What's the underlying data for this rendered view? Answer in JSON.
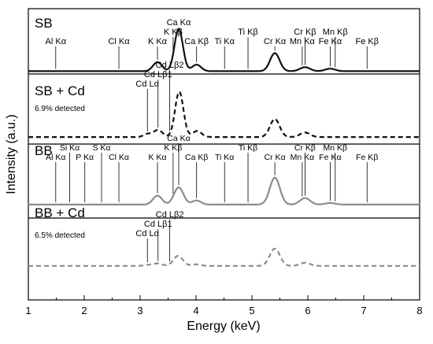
{
  "chart_data": {
    "type": "line",
    "xlabel": "Energy (keV)",
    "ylabel": "Intensity (a.u.)",
    "xlim": [
      1,
      8
    ],
    "x_ticks": [
      "1",
      "2",
      "3",
      "4",
      "5",
      "6",
      "7",
      "8"
    ],
    "grid": false,
    "colors": {
      "black": "#111111",
      "gray": "#8c8c8c"
    },
    "panels": [
      {
        "title": "SB",
        "note": "",
        "color": "#111111",
        "line_style": "solid",
        "baseline": 0.04,
        "peaks": [
          {
            "x": 3.31,
            "h": 0.18,
            "w": 0.08
          },
          {
            "x": 3.69,
            "h": 0.84,
            "w": 0.075
          },
          {
            "x": 4.01,
            "h": 0.13,
            "w": 0.08
          },
          {
            "x": 5.41,
            "h": 0.36,
            "w": 0.085
          },
          {
            "x": 5.95,
            "h": 0.08,
            "w": 0.09
          },
          {
            "x": 6.4,
            "h": 0.05,
            "w": 0.09
          }
        ],
        "labels": [
          {
            "text": "Al Kα",
            "x": 1.49
          },
          {
            "text": "Cl Kα",
            "x": 2.62
          },
          {
            "text": "K Kα",
            "x": 3.31
          },
          {
            "text": "K Kβ",
            "x": 3.59
          },
          {
            "text": "Ca Kα",
            "x": 3.69
          },
          {
            "text": "Ca Kβ",
            "x": 4.01
          },
          {
            "text": "Ti Kα",
            "x": 4.51
          },
          {
            "text": "Ti Kβ",
            "x": 4.93
          },
          {
            "text": "Cr Kα",
            "x": 5.41
          },
          {
            "text": "Mn Kα",
            "x": 5.9
          },
          {
            "text": "Cr Kβ",
            "x": 5.95
          },
          {
            "text": "Fe Kα",
            "x": 6.4
          },
          {
            "text": "Mn Kβ",
            "x": 6.49
          },
          {
            "text": "Fe Kβ",
            "x": 7.06
          }
        ]
      },
      {
        "title": "SB + Cd",
        "note": "6.9% detected",
        "color": "#111111",
        "line_style": "dashed",
        "baseline": 0.03,
        "peaks": [
          {
            "x": 3.13,
            "h": 0.06,
            "w": 0.07
          },
          {
            "x": 3.32,
            "h": 0.14,
            "w": 0.08
          },
          {
            "x": 3.7,
            "h": 0.9,
            "w": 0.075
          },
          {
            "x": 4.02,
            "h": 0.12,
            "w": 0.08
          },
          {
            "x": 5.41,
            "h": 0.36,
            "w": 0.085
          },
          {
            "x": 5.95,
            "h": 0.09,
            "w": 0.09
          }
        ],
        "labels": [
          {
            "text": "Cd Lα",
            "x": 3.13
          },
          {
            "text": "Cd Lβ1",
            "x": 3.32
          },
          {
            "text": "Cd Lβ2",
            "x": 3.53
          }
        ]
      },
      {
        "title": "BB",
        "note": "",
        "color": "#8c8c8c",
        "line_style": "solid",
        "baseline": 0.04,
        "peaks": [
          {
            "x": 3.31,
            "h": 0.22,
            "w": 0.08
          },
          {
            "x": 3.69,
            "h": 0.42,
            "w": 0.085
          },
          {
            "x": 4.01,
            "h": 0.1,
            "w": 0.08
          },
          {
            "x": 5.41,
            "h": 0.66,
            "w": 0.09
          },
          {
            "x": 5.95,
            "h": 0.16,
            "w": 0.09
          },
          {
            "x": 6.4,
            "h": 0.04,
            "w": 0.09
          }
        ],
        "labels": [
          {
            "text": "Al Kα",
            "x": 1.49
          },
          {
            "text": "P Kα",
            "x": 2.01
          },
          {
            "text": "Si Kα",
            "x": 1.74
          },
          {
            "text": "S Kα",
            "x": 2.31
          },
          {
            "text": "Cl Kα",
            "x": 2.62
          },
          {
            "text": "K Kα",
            "x": 3.31
          },
          {
            "text": "K Kβ",
            "x": 3.59
          },
          {
            "text": "Ca Kα",
            "x": 3.69
          },
          {
            "text": "Ca Kβ",
            "x": 4.01
          },
          {
            "text": "Ti Kα",
            "x": 4.51
          },
          {
            "text": "Ti Kβ",
            "x": 4.93
          },
          {
            "text": "Cr Kα",
            "x": 5.41
          },
          {
            "text": "Mn Kα",
            "x": 5.9
          },
          {
            "text": "Cr Kβ",
            "x": 5.95
          },
          {
            "text": "Fe Kα",
            "x": 6.4
          },
          {
            "text": "Mn Kβ",
            "x": 6.49
          },
          {
            "text": "Fe Kβ",
            "x": 7.06
          }
        ]
      },
      {
        "title": "BB + Cd",
        "note": "6.5% detected",
        "color": "#8c8c8c",
        "line_style": "dashed",
        "baseline": 0.03,
        "peaks": [
          {
            "x": 3.13,
            "h": 0.03,
            "w": 0.07
          },
          {
            "x": 3.31,
            "h": 0.08,
            "w": 0.08
          },
          {
            "x": 3.68,
            "h": 0.32,
            "w": 0.085
          },
          {
            "x": 4.01,
            "h": 0.05,
            "w": 0.08
          },
          {
            "x": 5.41,
            "h": 0.55,
            "w": 0.09
          },
          {
            "x": 5.95,
            "h": 0.1,
            "w": 0.09
          }
        ],
        "labels": [
          {
            "text": "Cd Lα",
            "x": 3.13
          },
          {
            "text": "Cd Lβ1",
            "x": 3.32
          },
          {
            "text": "Cd Lβ2",
            "x": 3.53
          }
        ]
      }
    ]
  }
}
